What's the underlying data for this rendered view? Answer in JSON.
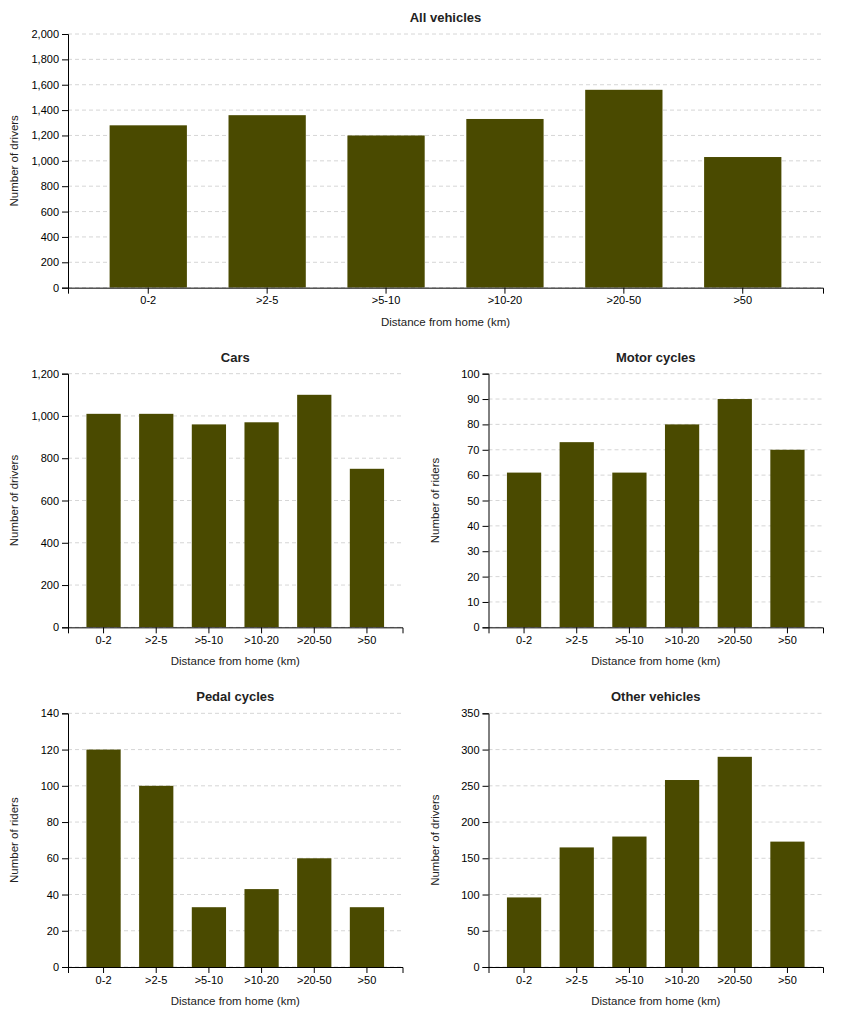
{
  "chart_data": [
    {
      "type": "bar",
      "title": "All vehicles",
      "categories": [
        "0-2",
        ">2-5",
        ">5-10",
        ">10-20",
        ">20-50",
        ">50"
      ],
      "values": [
        1280,
        1360,
        1200,
        1330,
        1560,
        1030
      ],
      "color": "#4a4a00",
      "xlabel": "Distance from home (km)",
      "ylabel": "Number of drivers",
      "ylim": [
        0,
        2000
      ],
      "yticks": [
        0,
        200,
        400,
        600,
        800,
        {
          "value": 1000,
          "label": "1,000"
        },
        {
          "value": 1200,
          "label": "1,200"
        },
        {
          "value": 1400,
          "label": "1,400"
        },
        {
          "value": 1600,
          "label": "1,600"
        },
        {
          "value": 1800,
          "label": "1,800"
        },
        {
          "value": 2000,
          "label": "2,000"
        }
      ],
      "grid": true
    },
    {
      "type": "bar",
      "title": "Cars",
      "categories": [
        "0-2",
        ">2-5",
        ">5-10",
        ">10-20",
        ">20-50",
        ">50"
      ],
      "values": [
        1010,
        1010,
        960,
        970,
        1100,
        750
      ],
      "color": "#4a4a00",
      "xlabel": "Distance from home (km)",
      "ylabel": "Number of drivers",
      "ylim": [
        0,
        1200
      ],
      "yticks": [
        0,
        200,
        400,
        600,
        800,
        {
          "value": 1000,
          "label": "1,000"
        },
        {
          "value": 1200,
          "label": "1,200"
        }
      ],
      "grid": true
    },
    {
      "type": "bar",
      "title": "Motor cycles",
      "categories": [
        "0-2",
        ">2-5",
        ">5-10",
        ">10-20",
        ">20-50",
        ">50"
      ],
      "values": [
        61,
        73,
        61,
        80,
        90,
        70
      ],
      "color": "#4a4a00",
      "xlabel": "Distance from home (km)",
      "ylabel": "Number of riders",
      "ylim": [
        0,
        100
      ],
      "yticks": [
        0,
        10,
        20,
        30,
        40,
        50,
        60,
        70,
        80,
        90,
        100
      ],
      "grid": true
    },
    {
      "type": "bar",
      "title": "Pedal cycles",
      "categories": [
        "0-2",
        ">2-5",
        ">5-10",
        ">10-20",
        ">20-50",
        ">50"
      ],
      "values": [
        120,
        100,
        33,
        43,
        60,
        33
      ],
      "color": "#4a4a00",
      "xlabel": "Distance from home (km)",
      "ylabel": "Number of riders",
      "ylim": [
        0,
        140
      ],
      "yticks": [
        0,
        20,
        40,
        60,
        80,
        100,
        120,
        140
      ],
      "grid": true
    },
    {
      "type": "bar",
      "title": "Other vehicles",
      "categories": [
        "0-2",
        ">2-5",
        ">5-10",
        ">10-20",
        ">20-50",
        ">50"
      ],
      "values": [
        96,
        165,
        180,
        258,
        290,
        173
      ],
      "color": "#4a4a00",
      "xlabel": "Distance from home (km)",
      "ylabel": "Number of drivers",
      "ylim": [
        0,
        350
      ],
      "yticks": [
        0,
        50,
        100,
        150,
        200,
        250,
        300,
        350
      ],
      "grid": true
    }
  ]
}
